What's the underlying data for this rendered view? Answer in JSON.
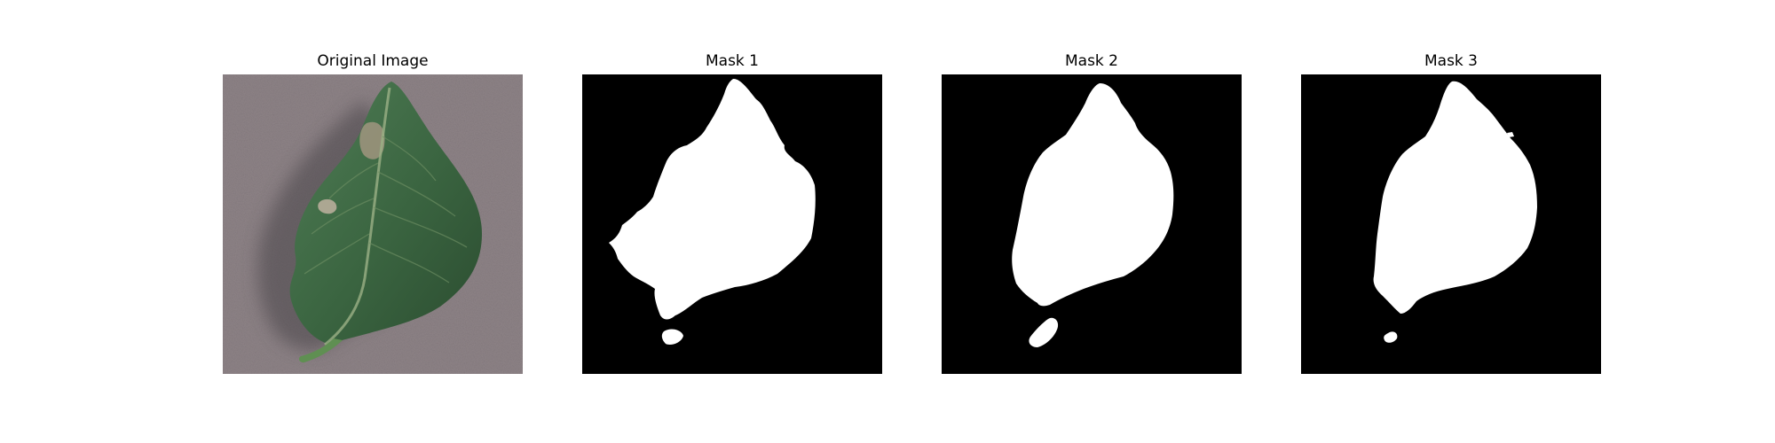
{
  "figure": {
    "panels": [
      {
        "title": "Original Image",
        "kind": "photo"
      },
      {
        "title": "Mask 1",
        "kind": "mask"
      },
      {
        "title": "Mask 2",
        "kind": "mask"
      },
      {
        "title": "Mask 3",
        "kind": "mask"
      }
    ]
  },
  "colors": {
    "background": "#ffffff",
    "mask_fg": "#ffffff",
    "mask_bg": "#000000",
    "photo_bg": "#8e8387",
    "leaf": "#3f6b45",
    "leaf_dark": "#2c4a30",
    "vein": "#8aa37a",
    "lesion": "#a79c8c"
  }
}
